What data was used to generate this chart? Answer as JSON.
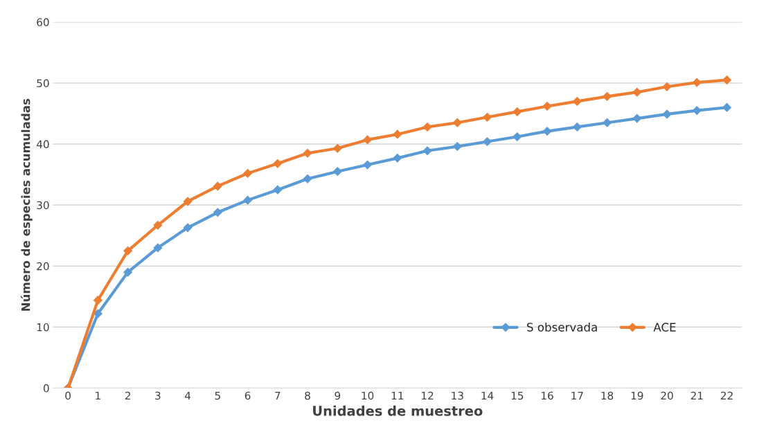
{
  "chart_data": {
    "type": "line",
    "xlabel": "Unidades de muestreo",
    "ylabel": "Número de especies acumuladas",
    "categories": [
      "0",
      "1",
      "2",
      "3",
      "4",
      "5",
      "6",
      "7",
      "8",
      "9",
      "10",
      "11",
      "12",
      "13",
      "14",
      "15",
      "16",
      "17",
      "18",
      "19",
      "20",
      "21",
      "22"
    ],
    "series": [
      {
        "name": "S observada",
        "color": "#5b9bd5",
        "values": [
          0,
          12.2,
          19,
          23,
          26.3,
          28.8,
          30.8,
          32.5,
          34.3,
          35.5,
          36.6,
          37.7,
          38.9,
          39.6,
          40.4,
          41.2,
          42.1,
          42.8,
          43.5,
          44.2,
          44.9,
          45.5,
          46
        ]
      },
      {
        "name": "ACE",
        "color": "#ed7d31",
        "values": [
          0,
          14.4,
          22.5,
          26.7,
          30.6,
          33.1,
          35.2,
          36.8,
          38.5,
          39.3,
          40.7,
          41.6,
          42.8,
          43.5,
          44.4,
          45.3,
          46.2,
          47,
          47.8,
          48.5,
          49.4,
          50.1,
          50.5
        ]
      }
    ],
    "ylim": [
      0,
      60
    ],
    "yticks": [
      0,
      10,
      20,
      30,
      40,
      50,
      60
    ],
    "grid": "y",
    "legend": "bottom right",
    "marker": "diamond",
    "line_style": "solid"
  }
}
